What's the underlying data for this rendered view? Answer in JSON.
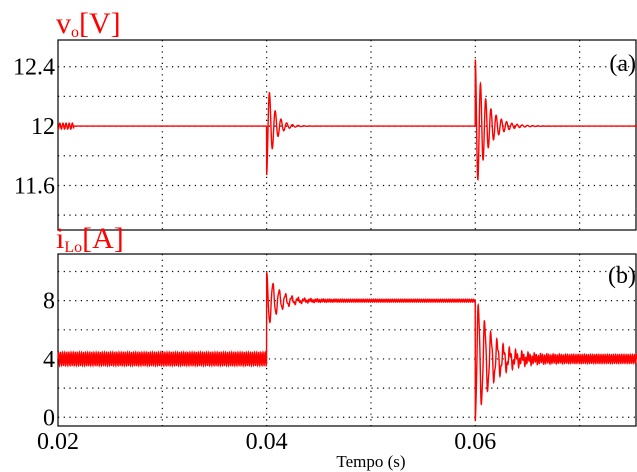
{
  "chart_data": [
    {
      "type": "line",
      "panel_label": "(a)",
      "ylabel_main": "v",
      "ylabel_sub": "o",
      "ylabel_unit": "[V]",
      "xlim": [
        0.02,
        0.0755
      ],
      "ylim": [
        11.3,
        12.58
      ],
      "yticks": [
        11.6,
        12,
        12.4
      ],
      "ytick_labels": [
        "11.6",
        "12",
        "12.4"
      ],
      "xgrid": [
        0.03,
        0.04,
        0.05,
        0.06,
        0.07
      ],
      "ygrid": [
        11.4,
        11.6,
        11.8,
        12.0,
        12.2,
        12.4
      ],
      "grid": "dotted",
      "color": "#ff0000",
      "series": [
        {
          "steady": 12.0,
          "events": [
            {
              "t": 0.04,
              "first_peak": -0.33,
              "second_peak": 0.36,
              "decay_tau": 0.0007,
              "period": 0.00055
            },
            {
              "t": 0.06,
              "first_peak": 0.45,
              "second_peak": -0.37,
              "decay_tau": 0.0011,
              "period": 0.0005
            }
          ]
        }
      ]
    },
    {
      "type": "line",
      "panel_label": "(b)",
      "ylabel_main": "i",
      "ylabel_sub": "Lo",
      "ylabel_unit": "[A]",
      "xlim": [
        0.02,
        0.0755
      ],
      "ylim": [
        -0.6,
        11.2
      ],
      "yticks": [
        0,
        4,
        8
      ],
      "ytick_labels": [
        "0",
        "4",
        "8"
      ],
      "xgrid": [
        0.03,
        0.04,
        0.05,
        0.06,
        0.07
      ],
      "ygrid": [
        0,
        2,
        4,
        6,
        8,
        10
      ],
      "grid": "dotted",
      "color": "#ff0000",
      "series": [
        {
          "segments": [
            {
              "from": 0.02,
              "to": 0.04,
              "level": 4.0,
              "ripple": 0.45
            },
            {
              "from": 0.04,
              "to": 0.06,
              "level": 8.0,
              "ripple": 0.1
            },
            {
              "from": 0.06,
              "to": 0.0755,
              "level": 4.0,
              "ripple": 0.3
            }
          ],
          "events": [
            {
              "t": 0.04,
              "first_peak": 1.9,
              "decay_tau": 0.0012,
              "period": 0.0006
            },
            {
              "t": 0.06,
              "first_peak": -4.3,
              "decay_tau": 0.0016,
              "period": 0.0006
            }
          ]
        }
      ]
    }
  ],
  "x_axis": {
    "ticks": [
      0.02,
      0.04,
      0.06
    ],
    "tick_labels": [
      "0.02",
      "0.04",
      "0.06"
    ],
    "label": "Tempo (s)"
  }
}
